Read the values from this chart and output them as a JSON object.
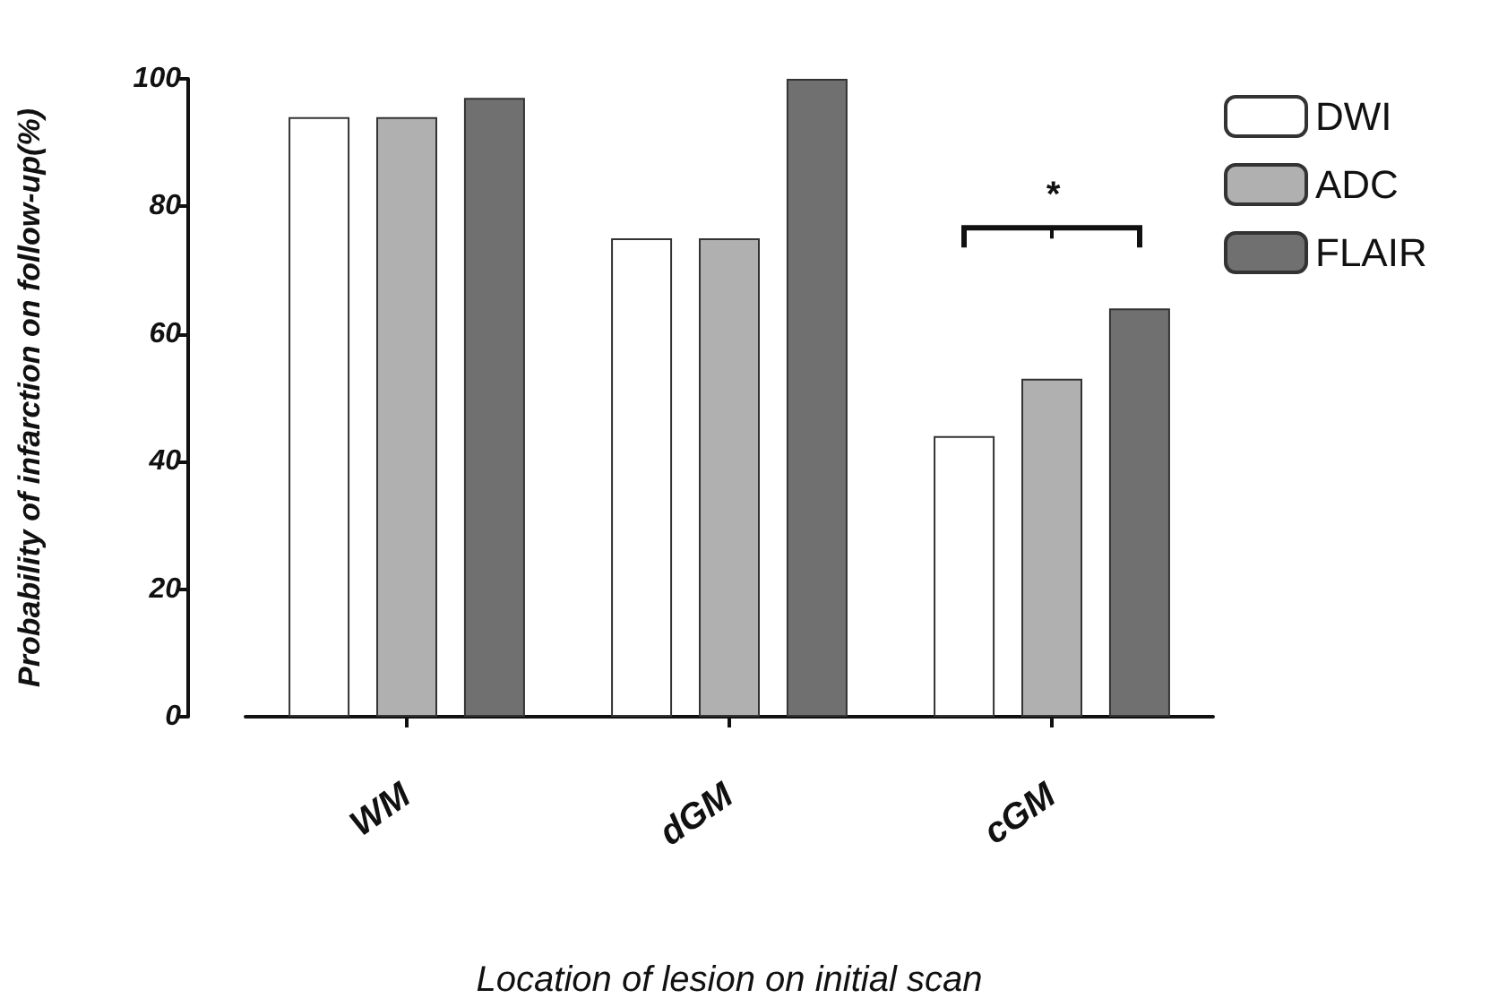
{
  "chart_data": {
    "type": "bar",
    "xlabel": "Location of lesion on initial scan",
    "ylabel": "Probability of infarction on follow-up(%)",
    "categories": [
      "WM",
      "dGM",
      "cGM"
    ],
    "series": [
      {
        "name": "DWI",
        "color": "#ffffff",
        "values": [
          94,
          75,
          44
        ]
      },
      {
        "name": "ADC",
        "color": "#b0b0b0",
        "values": [
          94,
          75,
          53
        ]
      },
      {
        "name": "FLAIR",
        "color": "#707070",
        "values": [
          97,
          100,
          64
        ]
      }
    ],
    "ylim": [
      0,
      100
    ],
    "yticks": [
      0,
      20,
      40,
      60,
      80,
      100
    ],
    "grid": false,
    "legend": "right",
    "annotations": [
      "*"
    ]
  }
}
